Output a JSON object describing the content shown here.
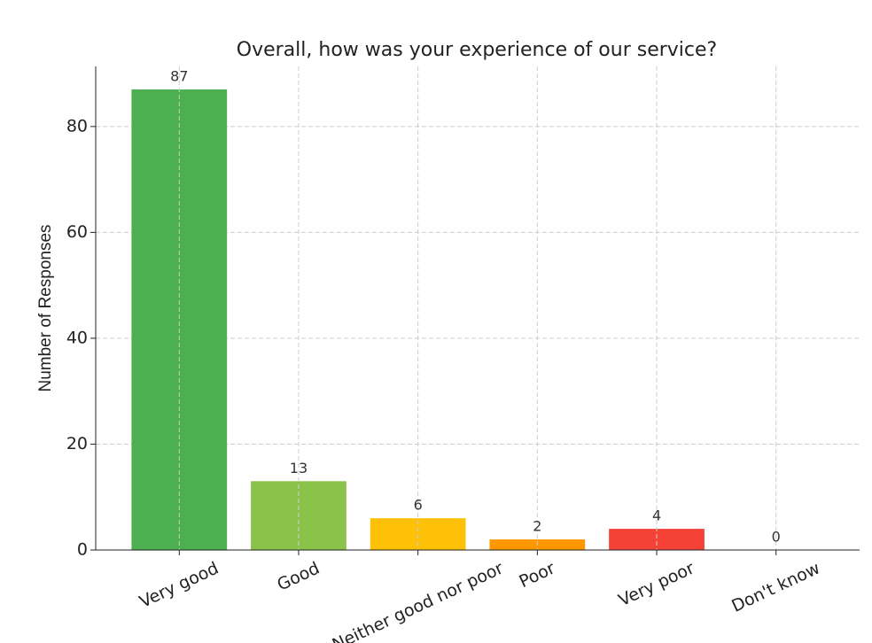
{
  "chart_data": {
    "type": "bar",
    "title": "Overall, how was your experience of our service?",
    "y_label": "Number of Responses",
    "categories": [
      "Very good",
      "Good",
      "Neither good nor poor",
      "Poor",
      "Very poor",
      "Don't know"
    ],
    "values": [
      87,
      13,
      6,
      2,
      4,
      0
    ],
    "colors": [
      "#4caf50",
      "#8bc34a",
      "#ffc107",
      "#ff9800",
      "#f44336",
      "#9e9e9e"
    ],
    "ylim": [
      0,
      91.35
    ],
    "yticks": [
      0,
      20,
      40,
      60,
      80
    ],
    "grid": true
  }
}
